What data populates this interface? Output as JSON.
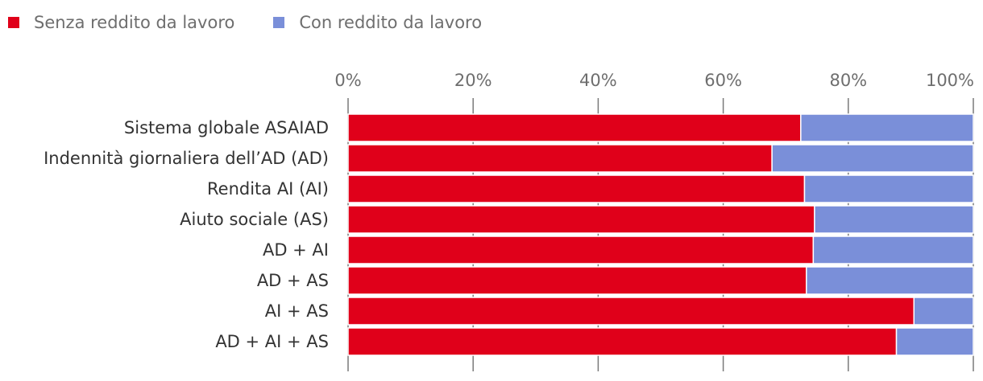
{
  "legend": {
    "items": [
      {
        "label": "Senza reddito da lavoro",
        "color": "#e0001a"
      },
      {
        "label": "Con reddito da lavoro",
        "color": "#7a8fd9"
      }
    ],
    "placement": "top-left"
  },
  "chart_data": {
    "type": "bar",
    "orientation": "horizontal",
    "stacked": true,
    "categories": [
      "Sistema globale ASAIAD",
      "Indennità giornaliera dell’AD (AD)",
      "Rendita AI (AI)",
      "Aiuto sociale (AS)",
      "AD + AI",
      "AD + AS",
      "AI + AS",
      "AD + AI + AS"
    ],
    "series": [
      {
        "name": "Senza reddito da lavoro",
        "color": "#e0001a",
        "values": [
          72.4,
          67.8,
          73.0,
          74.6,
          74.4,
          73.3,
          90.5,
          87.7
        ]
      },
      {
        "name": "Con reddito da lavoro",
        "color": "#7a8fd9",
        "values": [
          27.6,
          32.2,
          27.0,
          25.4,
          25.6,
          26.7,
          9.5,
          12.3
        ]
      }
    ],
    "xlim": [
      0,
      100
    ],
    "xticks": [
      "0%",
      "20%",
      "40%",
      "60%",
      "80%",
      "100%"
    ],
    "title": "",
    "xlabel": "",
    "ylabel": "",
    "grid": false
  }
}
